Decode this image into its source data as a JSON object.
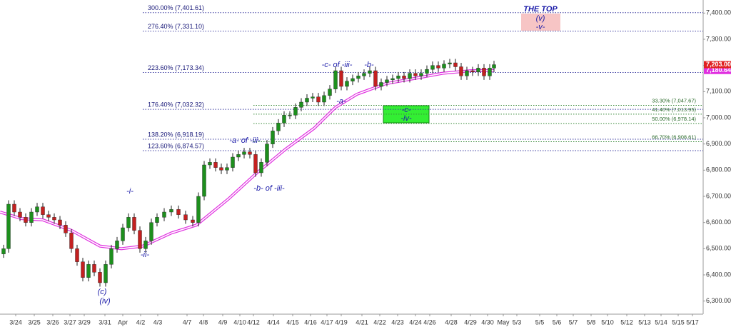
{
  "chart_data": {
    "type": "candlestick",
    "xlim": [
      0,
      985
    ],
    "ylim": [
      6250,
      7450
    ],
    "yticks": [
      {
        "value": 6300,
        "label": "6,300.00"
      },
      {
        "value": 6400,
        "label": "6,400.00"
      },
      {
        "value": 6500,
        "label": "6,500.00"
      },
      {
        "value": 6600,
        "label": "6,600.00"
      },
      {
        "value": 6700,
        "label": "6,700.00"
      },
      {
        "value": 6800,
        "label": "6,800.00"
      },
      {
        "value": 6900,
        "label": "6,900.00"
      },
      {
        "value": 7000,
        "label": "7,000.00"
      },
      {
        "value": 7100,
        "label": "7,100.00"
      },
      {
        "value": 7200,
        "label": "7,200.00"
      },
      {
        "value": 7300,
        "label": "7,300.00"
      },
      {
        "value": 7400,
        "label": "7,400.00"
      }
    ],
    "xticks": [
      {
        "value": 22,
        "label": "3/24"
      },
      {
        "value": 48,
        "label": "3/25"
      },
      {
        "value": 74,
        "label": "3/26"
      },
      {
        "value": 98,
        "label": "3/27"
      },
      {
        "value": 118,
        "label": "3/29"
      },
      {
        "value": 147,
        "label": "3/31"
      },
      {
        "value": 172,
        "label": "Apr"
      },
      {
        "value": 197,
        "label": "4/2"
      },
      {
        "value": 221,
        "label": "4/3"
      },
      {
        "value": 262,
        "label": "4/7"
      },
      {
        "value": 285,
        "label": "4/8"
      },
      {
        "value": 312,
        "label": "4/9"
      },
      {
        "value": 336,
        "label": "4/10"
      },
      {
        "value": 355,
        "label": "4/12"
      },
      {
        "value": 383,
        "label": "4/14"
      },
      {
        "value": 410,
        "label": "4/15"
      },
      {
        "value": 435,
        "label": "4/16"
      },
      {
        "value": 458,
        "label": "4/17"
      },
      {
        "value": 478,
        "label": "4/19"
      },
      {
        "value": 507,
        "label": "4/21"
      },
      {
        "value": 532,
        "label": "4/22"
      },
      {
        "value": 557,
        "label": "4/23"
      },
      {
        "value": 582,
        "label": "4/24"
      },
      {
        "value": 602,
        "label": "4/26"
      },
      {
        "value": 632,
        "label": "4/28"
      },
      {
        "value": 659,
        "label": "4/29"
      },
      {
        "value": 683,
        "label": "4/30"
      },
      {
        "value": 705,
        "label": "May"
      },
      {
        "value": 724,
        "label": "5/3"
      },
      {
        "value": 756,
        "label": "5/5"
      },
      {
        "value": 780,
        "label": "5/6"
      },
      {
        "value": 803,
        "label": "5/7"
      },
      {
        "value": 828,
        "label": "5/8"
      },
      {
        "value": 851,
        "label": "5/10"
      },
      {
        "value": 878,
        "label": "5/12"
      },
      {
        "value": 903,
        "label": "5/13"
      },
      {
        "value": 926,
        "label": "5/14"
      },
      {
        "value": 950,
        "label": "5/15"
      },
      {
        "value": 970,
        "label": "5/17"
      }
    ],
    "up_color": "#1d8f1d",
    "down_color": "#c42020",
    "candles": {
      "x": [
        5,
        12,
        20,
        28,
        36,
        44,
        52,
        60,
        68,
        76,
        84,
        92,
        100,
        108,
        116,
        124,
        132,
        140,
        148,
        156,
        164,
        172,
        180,
        188,
        196,
        204,
        212,
        220,
        230,
        240,
        250,
        260,
        270,
        278,
        286,
        294,
        302,
        310,
        318,
        326,
        334,
        342,
        350,
        358,
        366,
        374,
        382,
        390,
        398,
        406,
        414,
        422,
        430,
        438,
        446,
        454,
        462,
        470,
        478,
        486,
        494,
        502,
        510,
        518,
        526,
        534,
        542,
        550,
        558,
        566,
        574,
        582,
        590,
        598,
        606,
        614,
        622,
        630,
        638,
        646,
        654,
        662,
        670,
        678,
        686,
        692
      ],
      "open": [
        6480,
        6500,
        6670,
        6640,
        6620,
        6600,
        6640,
        6660,
        6630,
        6620,
        6610,
        6590,
        6560,
        6500,
        6450,
        6390,
        6440,
        6410,
        6370,
        6440,
        6500,
        6530,
        6580,
        6620,
        6570,
        6500,
        6530,
        6600,
        6620,
        6640,
        6650,
        6630,
        6610,
        6600,
        6700,
        6820,
        6830,
        6810,
        6800,
        6810,
        6850,
        6860,
        6870,
        6860,
        6790,
        6830,
        6900,
        6950,
        6980,
        7010,
        7010,
        7040,
        7060,
        7075,
        7080,
        7060,
        7085,
        7110,
        7180,
        7120,
        7140,
        7150,
        7160,
        7170,
        7180,
        7120,
        7135,
        7145,
        7150,
        7160,
        7150,
        7170,
        7160,
        7170,
        7185,
        7200,
        7190,
        7205,
        7210,
        7195,
        7160,
        7180,
        7175,
        7190,
        7160,
        7190
      ],
      "high": [
        6515,
        6685,
        6685,
        6655,
        6635,
        6655,
        6675,
        6675,
        6645,
        6635,
        6625,
        6605,
        6575,
        6515,
        6465,
        6455,
        6455,
        6425,
        6455,
        6515,
        6545,
        6595,
        6635,
        6635,
        6585,
        6545,
        6615,
        6635,
        6655,
        6665,
        6665,
        6645,
        6625,
        6715,
        6835,
        6845,
        6845,
        6825,
        6825,
        6865,
        6875,
        6885,
        6885,
        6875,
        6845,
        6915,
        6965,
        6995,
        7025,
        7025,
        7055,
        7075,
        7090,
        7095,
        7095,
        7100,
        7125,
        7195,
        7195,
        7155,
        7165,
        7175,
        7185,
        7195,
        7195,
        7150,
        7160,
        7165,
        7175,
        7175,
        7185,
        7185,
        7185,
        7200,
        7215,
        7215,
        7220,
        7225,
        7225,
        7210,
        7195,
        7195,
        7205,
        7205,
        7205,
        7218
      ],
      "low": [
        6465,
        6485,
        6625,
        6605,
        6585,
        6585,
        6625,
        6615,
        6605,
        6595,
        6575,
        6545,
        6485,
        6435,
        6375,
        6375,
        6395,
        6355,
        6355,
        6425,
        6485,
        6515,
        6565,
        6555,
        6485,
        6485,
        6515,
        6585,
        6605,
        6625,
        6615,
        6595,
        6585,
        6585,
        6685,
        6805,
        6795,
        6785,
        6785,
        6795,
        6835,
        6845,
        6845,
        6775,
        6775,
        6815,
        6885,
        6935,
        6965,
        6995,
        6995,
        7025,
        7045,
        7060,
        7045,
        7045,
        7070,
        7095,
        7105,
        7105,
        7125,
        7135,
        7145,
        7155,
        7105,
        7105,
        7120,
        7130,
        7135,
        7135,
        7135,
        7145,
        7145,
        7155,
        7170,
        7175,
        7175,
        7190,
        7180,
        7145,
        7145,
        7160,
        7160,
        7145,
        7145,
        7175
      ],
      "close": [
        6500,
        6670,
        6640,
        6620,
        6600,
        6640,
        6660,
        6630,
        6620,
        6610,
        6590,
        6560,
        6500,
        6450,
        6390,
        6440,
        6410,
        6370,
        6440,
        6500,
        6530,
        6580,
        6620,
        6570,
        6500,
        6530,
        6600,
        6620,
        6640,
        6650,
        6630,
        6610,
        6600,
        6700,
        6820,
        6830,
        6810,
        6800,
        6810,
        6850,
        6860,
        6870,
        6860,
        6790,
        6830,
        6900,
        6950,
        6980,
        7010,
        7010,
        7040,
        7060,
        7075,
        7080,
        7060,
        7085,
        7110,
        7180,
        7120,
        7140,
        7150,
        7160,
        7170,
        7180,
        7120,
        7135,
        7145,
        7150,
        7160,
        7150,
        7170,
        7160,
        7170,
        7185,
        7200,
        7190,
        7205,
        7210,
        7195,
        7160,
        7180,
        7175,
        7190,
        7160,
        7190,
        7203
      ]
    },
    "moving_average": {
      "color": "#e030e0",
      "x": [
        0,
        30,
        60,
        100,
        140,
        170,
        200,
        240,
        275,
        320,
        360,
        400,
        440,
        470,
        500,
        540,
        580,
        620,
        660,
        692
      ],
      "values": [
        6640,
        6615,
        6610,
        6570,
        6510,
        6500,
        6510,
        6560,
        6590,
        6690,
        6790,
        6880,
        6960,
        7040,
        7090,
        7130,
        7150,
        7170,
        7180,
        7180.64
      ]
    },
    "extension_levels": [
      {
        "value": 7401.61,
        "label": "300.00% (7,401.61)"
      },
      {
        "value": 7331.1,
        "label": "276.40% (7,331.10)"
      },
      {
        "value": 7173.34,
        "label": "223.60% (7,173.34)"
      },
      {
        "value": 7032.32,
        "label": "176.40% (7,032.32)"
      },
      {
        "value": 6918.19,
        "label": "138.20% (6,918.19)"
      },
      {
        "value": 6874.57,
        "label": "123.60% (6,874.57)"
      }
    ],
    "retracement_levels": [
      {
        "value": 7047.67,
        "label": "33.30% (7,047.67)"
      },
      {
        "value": 7013.95,
        "label": "41.40% (7,013.95)"
      },
      {
        "value": 6978.14,
        "label": "50.00% (6,978.14)"
      },
      {
        "value": 6908.61,
        "label": "66.70% (6,908.61)"
      }
    ],
    "last_price": {
      "value": 7203,
      "label": "7,203.00"
    },
    "last_average": {
      "value": 7180.64,
      "label": "7,180.64"
    },
    "annotations": [
      "-i-",
      "-ii-",
      "(c)",
      "(iv)",
      "-a- of -iii-",
      "-b- of -iii-",
      "-a-",
      "-c- of -iii-",
      "-b-",
      "THE TOP",
      "(v)",
      "-v-",
      "-c-",
      "-iv-"
    ]
  }
}
